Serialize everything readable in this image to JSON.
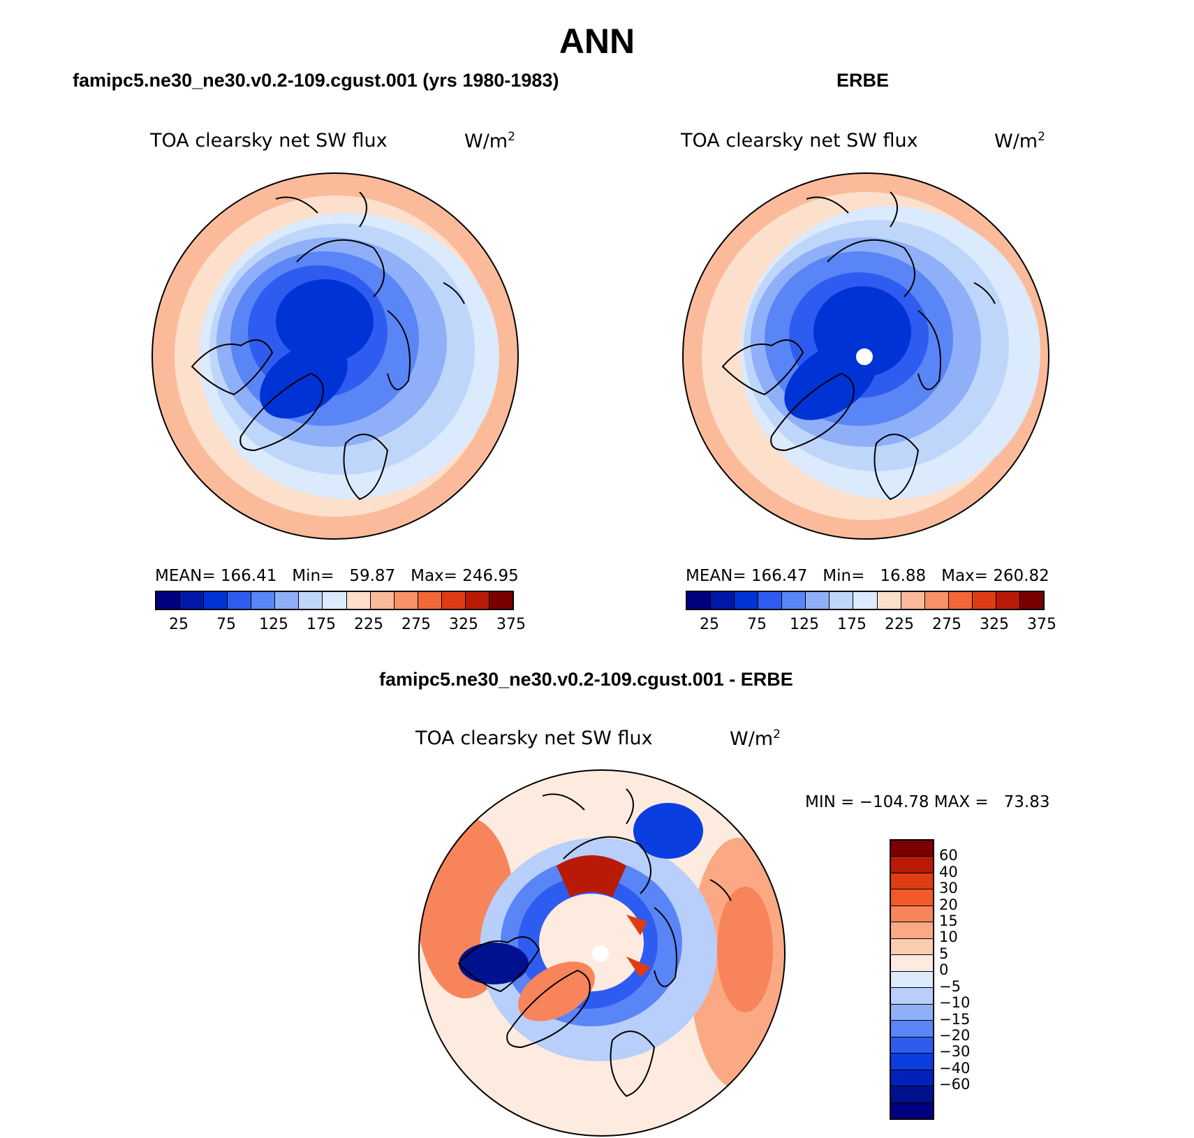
{
  "title": "ANN",
  "panels": [
    {
      "heading": "famipc5.ne30_ne30.v0.2-109.cgust.001 (yrs 1980-1983)",
      "subtitle": "TOA clearsky net SW flux",
      "units": "W/m",
      "units_sup": "2",
      "stats": "MEAN= 166.41   Min=   59.87   Max= 246.95"
    },
    {
      "heading": "ERBE",
      "subtitle": "TOA clearsky net SW flux",
      "units": "W/m",
      "units_sup": "2",
      "stats": "MEAN= 166.47   Min=   16.88   Max= 260.82"
    },
    {
      "heading": "famipc5.ne30_ne30.v0.2-109.cgust.001 - ERBE",
      "subtitle": "TOA clearsky net SW flux",
      "units": "W/m",
      "units_sup": "2",
      "stats": "MIN = −104.78 MAX =   73.83"
    }
  ],
  "colorbar_main": {
    "colors": [
      "#00007f",
      "#0018a8",
      "#0033d6",
      "#2f5cf0",
      "#5a85f6",
      "#8fb0f8",
      "#bfd6fb",
      "#dbeafc",
      "#fde0cc",
      "#fbbb9b",
      "#f89166",
      "#f26637",
      "#e03c14",
      "#b81a06",
      "#7a0000"
    ],
    "tick_labels": [
      "25",
      "75",
      "125",
      "175",
      "225",
      "275",
      "325",
      "375"
    ]
  },
  "colorbar_diff": {
    "colors": [
      "#7a0000",
      "#b81a06",
      "#e03c14",
      "#f25a2a",
      "#f7845a",
      "#fba985",
      "#fccbb0",
      "#fdebe0",
      "#dbeafc",
      "#b7cffa",
      "#8fb0f8",
      "#5a85f6",
      "#2f5cf0",
      "#0a3ee0",
      "#0022b8",
      "#00118f",
      "#00007f"
    ],
    "labels": [
      "60",
      "40",
      "30",
      "20",
      "15",
      "10",
      "5",
      "0",
      "−5",
      "−10",
      "−15",
      "−20",
      "−30",
      "−40",
      "−60"
    ]
  }
}
